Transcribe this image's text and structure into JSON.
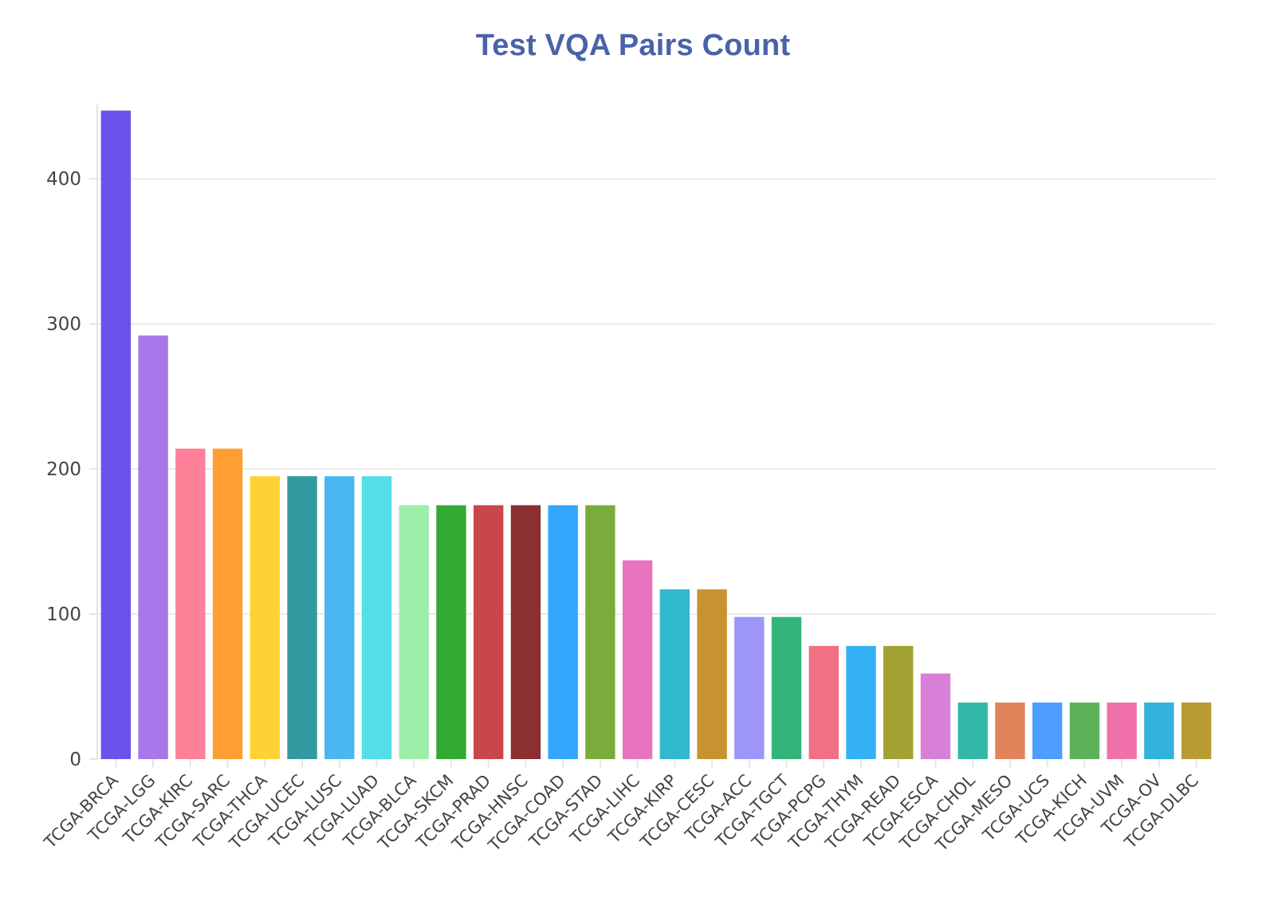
{
  "chart_data": {
    "type": "bar",
    "title": "Test VQA Pairs Count",
    "xlabel": "",
    "ylabel": "",
    "ylim": [
      0,
      450
    ],
    "yticks": [
      0,
      100,
      200,
      300,
      400
    ],
    "grid": true,
    "legend": "none",
    "categories": [
      "TCGA-BRCA",
      "TCGA-LGG",
      "TCGA-KIRC",
      "TCGA-SARC",
      "TCGA-THCA",
      "TCGA-UCEC",
      "TCGA-LUSC",
      "TCGA-LUAD",
      "TCGA-BLCA",
      "TCGA-SKCM",
      "TCGA-PRAD",
      "TCGA-HNSC",
      "TCGA-COAD",
      "TCGA-STAD",
      "TCGA-LIHC",
      "TCGA-KIRP",
      "TCGA-CESC",
      "TCGA-ACC",
      "TCGA-TGCT",
      "TCGA-PCPG",
      "TCGA-THYM",
      "TCGA-READ",
      "TCGA-ESCA",
      "TCGA-CHOL",
      "TCGA-MESO",
      "TCGA-UCS",
      "TCGA-KICH",
      "TCGA-UVM",
      "TCGA-OV",
      "TCGA-DLBC"
    ],
    "values": [
      447,
      292,
      214,
      214,
      195,
      195,
      195,
      195,
      175,
      175,
      175,
      175,
      175,
      175,
      137,
      117,
      117,
      98,
      98,
      78,
      78,
      78,
      59,
      39,
      39,
      39,
      39,
      39,
      39,
      39
    ],
    "colors": [
      "#6a52eb",
      "#a977e9",
      "#fe8099",
      "#fe9e33",
      "#fed234",
      "#339aa1",
      "#49b7f0",
      "#53dee8",
      "#9eeeaa",
      "#33aa32",
      "#c9474a",
      "#8b2f31",
      "#33a7fe",
      "#7aac3c",
      "#e873bf",
      "#32b8cc",
      "#c89231",
      "#9d96f8",
      "#33b57a",
      "#f17083",
      "#34b1f5",
      "#a1a233",
      "#d880d8",
      "#33b8a8",
      "#e18459",
      "#4d9efe",
      "#5db15b",
      "#f071a9",
      "#32b2dc",
      "#b89b33"
    ]
  }
}
